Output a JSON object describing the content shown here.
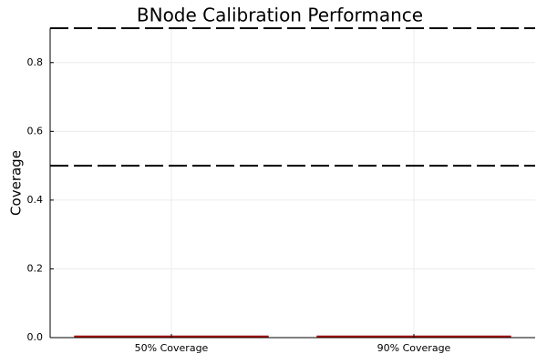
{
  "chart_data": {
    "type": "bar",
    "title": "BNode Calibration Performance",
    "xlabel": "",
    "ylabel": "Coverage",
    "categories": [
      "50% Coverage",
      "90% Coverage"
    ],
    "values": [
      0.0,
      0.0
    ],
    "ylim": [
      0,
      0.9
    ],
    "yticks": [
      0.0,
      0.2,
      0.4,
      0.6,
      0.8
    ],
    "ytick_labels": [
      "0.0",
      "0.2",
      "0.4",
      "0.6",
      "0.8"
    ],
    "reference_lines": [
      0.5,
      0.9
    ],
    "grid": true,
    "legend": "none",
    "colors": {
      "bar_fill": "#c00000",
      "bar_edge": "#7a0000",
      "reference_line": "#000000",
      "grid": "#ececec",
      "axis": "#000000"
    }
  }
}
